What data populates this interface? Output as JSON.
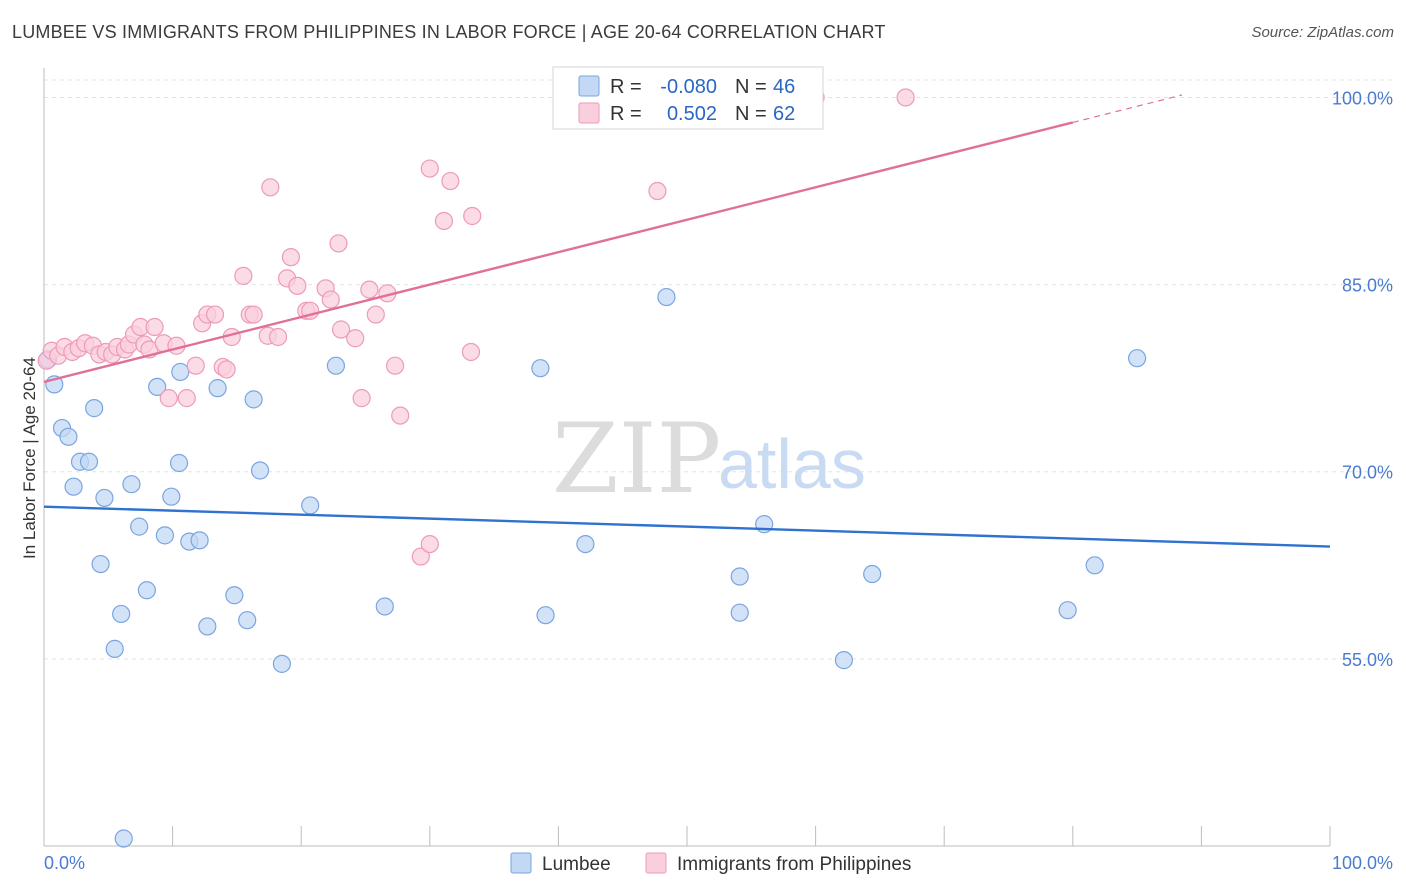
{
  "title": "LUMBEE VS IMMIGRANTS FROM PHILIPPINES IN LABOR FORCE | AGE 20-64 CORRELATION CHART",
  "source": "Source: ZipAtlas.com",
  "watermark": {
    "zip": "ZIP",
    "atlas": "atlas"
  },
  "legend": {
    "r_label": "R =",
    "n_label": "N =",
    "rows": [
      {
        "r": "-0.080",
        "n": "46"
      },
      {
        "r": "0.502",
        "n": "62"
      }
    ]
  },
  "chart_data": {
    "type": "scatter",
    "title": "LUMBEE VS IMMIGRANTS FROM PHILIPPINES IN LABOR FORCE | AGE 20-64 CORRELATION CHART",
    "xlabel": "",
    "ylabel": "In Labor Force | Age 20-64",
    "xlim": [
      0,
      100
    ],
    "ylim": [
      40,
      101.4
    ],
    "x_tick_labels": [
      "0.0%",
      "100.0%"
    ],
    "y_ticks": [
      55,
      70,
      85,
      100
    ],
    "y_tick_labels": [
      "55.0%",
      "70.0%",
      "85.0%",
      "100.0%"
    ],
    "grid": true,
    "legend_position": "bottom-center",
    "series": [
      {
        "name": "Lumbee",
        "color": "#7aa5e0",
        "fill": "#c3d8f4",
        "trend": {
          "x": [
            0,
            100
          ],
          "y": [
            67.2,
            64.0
          ]
        },
        "points": [
          [
            0.3,
            79.0
          ],
          [
            0.8,
            77.0
          ],
          [
            1.4,
            73.5
          ],
          [
            1.9,
            72.8
          ],
          [
            2.3,
            68.8
          ],
          [
            2.8,
            70.8
          ],
          [
            3.5,
            70.8
          ],
          [
            3.9,
            75.1
          ],
          [
            4.4,
            62.6
          ],
          [
            4.7,
            67.9
          ],
          [
            5.5,
            55.8
          ],
          [
            6.0,
            58.6
          ],
          [
            6.2,
            40.6
          ],
          [
            6.8,
            69.0
          ],
          [
            7.4,
            65.6
          ],
          [
            8.0,
            60.5
          ],
          [
            8.8,
            76.8
          ],
          [
            9.4,
            64.9
          ],
          [
            9.9,
            68.0
          ],
          [
            10.5,
            70.7
          ],
          [
            10.6,
            78.0
          ],
          [
            11.3,
            64.4
          ],
          [
            12.1,
            64.5
          ],
          [
            12.7,
            57.6
          ],
          [
            13.5,
            76.7
          ],
          [
            14.8,
            60.1
          ],
          [
            15.8,
            58.1
          ],
          [
            16.3,
            75.8
          ],
          [
            16.8,
            70.1
          ],
          [
            18.5,
            54.6
          ],
          [
            20.7,
            67.3
          ],
          [
            22.7,
            78.5
          ],
          [
            26.5,
            59.2
          ],
          [
            38.6,
            78.3
          ],
          [
            39.0,
            58.5
          ],
          [
            42.1,
            64.2
          ],
          [
            48.4,
            84.0
          ],
          [
            54.1,
            61.6
          ],
          [
            54.1,
            58.7
          ],
          [
            56.0,
            65.8
          ],
          [
            62.2,
            54.9
          ],
          [
            64.4,
            61.8
          ],
          [
            79.6,
            58.9
          ],
          [
            81.7,
            62.5
          ],
          [
            85.0,
            79.1
          ],
          [
            0.3,
            79.0
          ]
        ]
      },
      {
        "name": "Immigrants from Philippines",
        "color": "#ee9ab8",
        "fill": "#f9cfdd",
        "trend": {
          "x": [
            0,
            80
          ],
          "y": [
            77.2,
            98.0
          ]
        },
        "trend_dashed": {
          "x": [
            80,
            88.5
          ],
          "y": [
            98.0,
            100.2
          ]
        },
        "points": [
          [
            0.2,
            78.9
          ],
          [
            0.6,
            79.7
          ],
          [
            1.1,
            79.3
          ],
          [
            1.6,
            80.0
          ],
          [
            2.2,
            79.6
          ],
          [
            2.7,
            79.9
          ],
          [
            3.2,
            80.3
          ],
          [
            3.8,
            80.1
          ],
          [
            4.3,
            79.4
          ],
          [
            4.8,
            79.6
          ],
          [
            5.3,
            79.4
          ],
          [
            5.7,
            80.0
          ],
          [
            6.3,
            79.8
          ],
          [
            6.6,
            80.2
          ],
          [
            7.0,
            81.0
          ],
          [
            7.5,
            81.6
          ],
          [
            7.8,
            80.2
          ],
          [
            8.2,
            79.8
          ],
          [
            8.6,
            81.6
          ],
          [
            9.3,
            80.3
          ],
          [
            9.7,
            75.9
          ],
          [
            10.3,
            80.1
          ],
          [
            11.1,
            75.9
          ],
          [
            11.8,
            78.5
          ],
          [
            12.3,
            81.9
          ],
          [
            12.7,
            82.6
          ],
          [
            13.3,
            82.6
          ],
          [
            13.9,
            78.4
          ],
          [
            14.2,
            78.2
          ],
          [
            14.6,
            80.8
          ],
          [
            15.5,
            85.7
          ],
          [
            16.0,
            82.6
          ],
          [
            16.3,
            82.6
          ],
          [
            17.4,
            80.9
          ],
          [
            17.6,
            92.8
          ],
          [
            18.2,
            80.8
          ],
          [
            18.9,
            85.5
          ],
          [
            19.2,
            87.2
          ],
          [
            19.7,
            84.9
          ],
          [
            20.4,
            82.9
          ],
          [
            20.7,
            82.9
          ],
          [
            21.9,
            84.7
          ],
          [
            22.3,
            83.8
          ],
          [
            22.9,
            88.3
          ],
          [
            23.1,
            81.4
          ],
          [
            24.2,
            80.7
          ],
          [
            24.7,
            75.9
          ],
          [
            25.3,
            84.6
          ],
          [
            25.8,
            82.6
          ],
          [
            26.7,
            84.3
          ],
          [
            27.3,
            78.5
          ],
          [
            27.7,
            74.5
          ],
          [
            29.3,
            63.2
          ],
          [
            30.0,
            64.2
          ],
          [
            30.0,
            94.3
          ],
          [
            31.1,
            90.1
          ],
          [
            31.6,
            93.3
          ],
          [
            33.2,
            79.6
          ],
          [
            33.3,
            90.5
          ],
          [
            47.7,
            92.5
          ],
          [
            60.0,
            100.0
          ],
          [
            67.0,
            100.0
          ]
        ]
      }
    ]
  }
}
